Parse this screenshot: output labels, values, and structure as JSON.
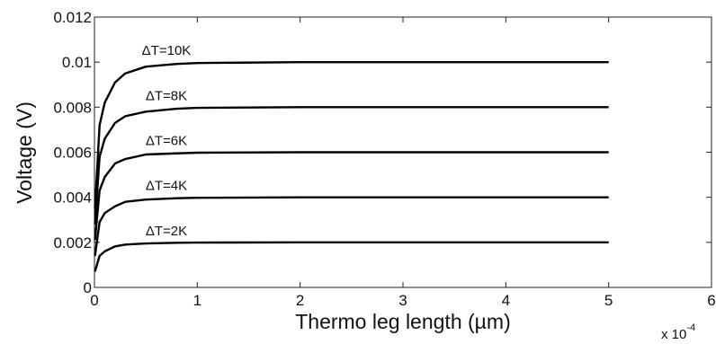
{
  "chart_data": {
    "type": "line",
    "xlabel": "Thermo leg length (µm)",
    "ylabel": "Voltage (V)",
    "x_multiplier": "x 10",
    "x_multiplier_exponent": "-4",
    "xlim": [
      0,
      6
    ],
    "ylim": [
      0,
      0.012
    ],
    "xticks": [
      "0",
      "1",
      "2",
      "3",
      "4",
      "5",
      "6"
    ],
    "yticks": [
      "0",
      "0.002",
      "0.004",
      "0.006",
      "0.008",
      "0.01",
      "0.012"
    ],
    "grid": false,
    "legend": "none",
    "line_color": "#000000",
    "series": [
      {
        "label": "ΔT=2K",
        "x": [
          0.005,
          0.05,
          0.1,
          0.2,
          0.3,
          0.5,
          0.8,
          1,
          2,
          3,
          4,
          5
        ],
        "values": [
          0.0007,
          0.0014,
          0.0016,
          0.00182,
          0.0019,
          0.00195,
          0.00198,
          0.00199,
          0.002,
          0.002,
          0.002,
          0.002
        ]
      },
      {
        "label": "ΔT=4K",
        "x": [
          0.005,
          0.05,
          0.1,
          0.2,
          0.3,
          0.5,
          0.8,
          1,
          2,
          3,
          4,
          5
        ],
        "values": [
          0.0014,
          0.0029,
          0.0033,
          0.0036,
          0.0038,
          0.0039,
          0.00396,
          0.00398,
          0.004,
          0.004,
          0.004,
          0.004
        ]
      },
      {
        "label": "ΔT=6K",
        "x": [
          0.005,
          0.05,
          0.1,
          0.2,
          0.3,
          0.5,
          0.8,
          1,
          2,
          3,
          4,
          5
        ],
        "values": [
          0.0021,
          0.0043,
          0.0049,
          0.0055,
          0.0057,
          0.0059,
          0.00595,
          0.00598,
          0.006,
          0.006,
          0.006,
          0.006
        ]
      },
      {
        "label": "ΔT=8K",
        "x": [
          0.005,
          0.05,
          0.1,
          0.2,
          0.3,
          0.5,
          0.8,
          1,
          2,
          3,
          4,
          5
        ],
        "values": [
          0.0028,
          0.0058,
          0.0066,
          0.0073,
          0.0076,
          0.0078,
          0.00793,
          0.00797,
          0.008,
          0.008,
          0.008,
          0.008
        ]
      },
      {
        "label": "ΔT=10K",
        "x": [
          0.005,
          0.05,
          0.1,
          0.2,
          0.3,
          0.5,
          0.8,
          1,
          2,
          3,
          4,
          5
        ],
        "values": [
          0.0035,
          0.0072,
          0.0082,
          0.0091,
          0.0095,
          0.0098,
          0.00992,
          0.00996,
          0.01,
          0.01,
          0.01,
          0.01
        ]
      }
    ]
  }
}
